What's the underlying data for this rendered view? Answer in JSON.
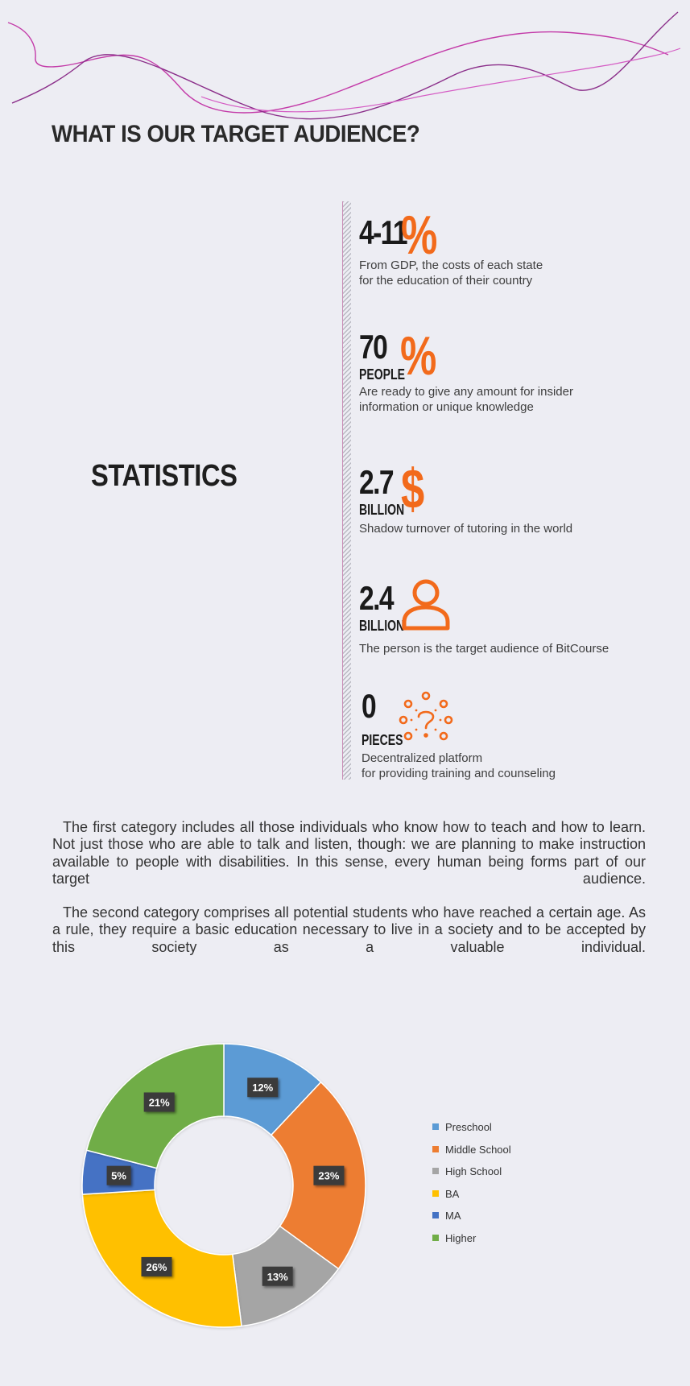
{
  "page": {
    "title": "WHAT IS OUR TARGET AUDIENCE?",
    "section_label": "STATISTICS",
    "accent_color": "#f26a1b",
    "wave_colors": [
      "#d22cb0",
      "#8b2f8a",
      "#c94fc0"
    ]
  },
  "stats": [
    {
      "number": "4-11",
      "unit": "",
      "symbol": "%",
      "icon": "percent-icon",
      "description": [
        "From GDP, the costs of each state",
        "for the education of their country"
      ]
    },
    {
      "number": "70",
      "unit": "PEOPLE",
      "symbol": "%",
      "icon": "percent-icon",
      "description": [
        "Are ready to give any amount for insider",
        "information or unique knowledge"
      ]
    },
    {
      "number": "2.7",
      "unit": "BILLION",
      "symbol": "$",
      "icon": "dollar-icon",
      "description": [
        "Shadow turnover of tutoring in the world"
      ]
    },
    {
      "number": "2.4",
      "unit": "BILLION",
      "symbol": "",
      "icon": "person-icon",
      "description": [
        "The person is the target audience of BitCourse"
      ]
    },
    {
      "number": "0",
      "unit": "PIECES",
      "symbol": "",
      "icon": "network-question-icon",
      "description": [
        "Decentralized platform",
        "for providing training and counseling"
      ]
    }
  ],
  "paragraphs": [
    "The first category includes all those individuals who know how to teach and how to learn. Not just those who are able to talk and listen, though: we are planning to make instruction available to people with disabilities. In this sense, every human being forms part of our target audience.",
    "The second category comprises all potential students who have reached a certain age. As a rule, they require a basic education necessary to live in a society and to be accepted by this society as a valuable individual."
  ],
  "chart_data": {
    "type": "pie",
    "donut": true,
    "categories": [
      "Preschool",
      "Middle School",
      "High School",
      "BA",
      "MA",
      "Higher"
    ],
    "values": [
      12,
      23,
      13,
      26,
      5,
      21
    ],
    "labels": [
      "12%",
      "23%",
      "13%",
      "26%",
      "5%",
      "21%"
    ],
    "colors": [
      "#5b9bd5",
      "#ed7d31",
      "#a5a5a5",
      "#ffc000",
      "#4472c4",
      "#70ad47"
    ],
    "legend": "right",
    "title": ""
  }
}
